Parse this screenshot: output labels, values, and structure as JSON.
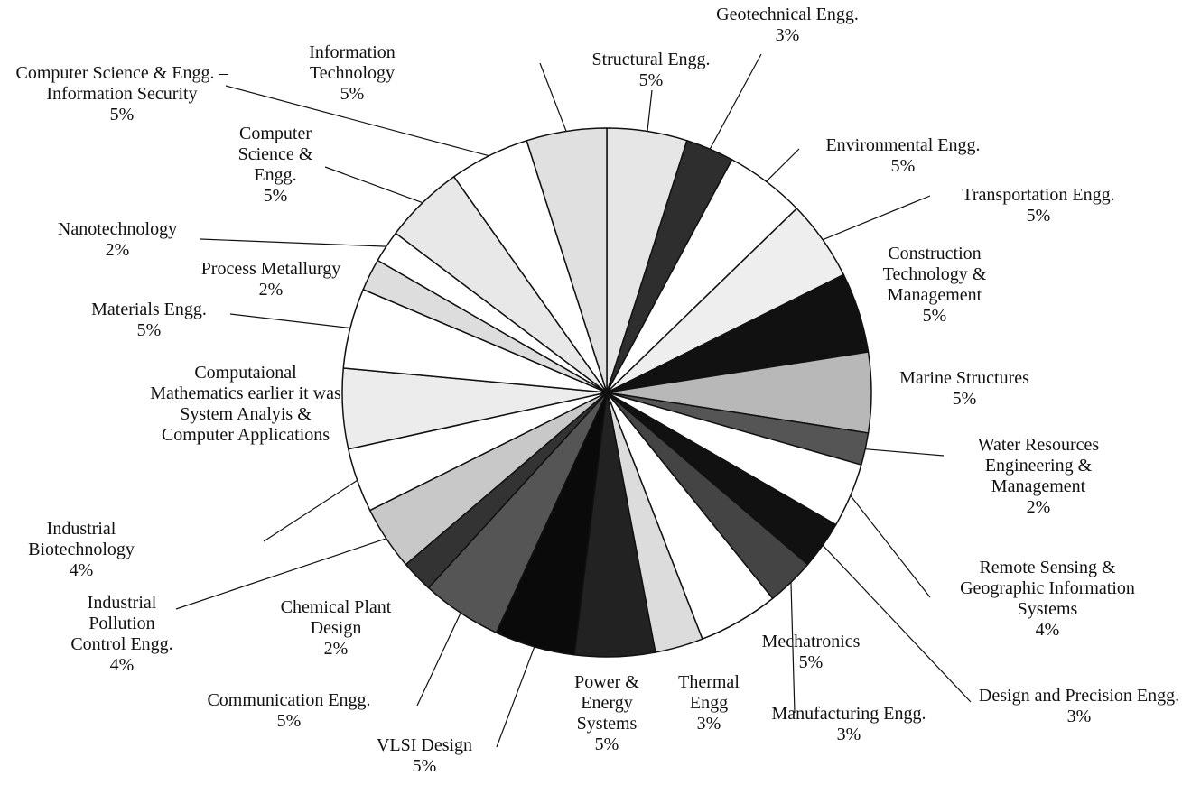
{
  "chart_data": {
    "type": "pie",
    "categories": [
      "Structural Engg.",
      "Geotechnical Engg.",
      "Environmental Engg.",
      "Transportation Engg.",
      "Construction Technology & Management",
      "Marine Structures",
      "Water Resources Engineering & Management",
      "Remote Sensing & Geographic Information Systems",
      "Design and Precision Engg.",
      "Manufacturing Engg.",
      "Mechatronics",
      "Thermal Engg",
      "Power & Energy Systems",
      "VLSI Design",
      "Communication Engg.",
      "Chemical Plant Design",
      "Industrial Pollution Control Engg.",
      "Industrial Biotechnology",
      "Computaional Mathematics earlier it was System Analyis & Computer Applications",
      "Materials Engg.",
      "Process Metallurgy",
      "Nanotechnology",
      "Computer Science & Engg.",
      "Computer Science & Engg. – Information Security",
      "Information Technology"
    ],
    "values": [
      5,
      3,
      5,
      5,
      5,
      5,
      2,
      4,
      3,
      3,
      5,
      3,
      5,
      5,
      5,
      2,
      4,
      4,
      5,
      5,
      2,
      2,
      5,
      5,
      5
    ],
    "value_labels": [
      "5%",
      "3%",
      "5%",
      "5%",
      "5%",
      "5%",
      "2%",
      "4%",
      "3%",
      "3%",
      "5%",
      "3%",
      "5%",
      "5%",
      "5%",
      "2%",
      "4%",
      "4%",
      null,
      "5%",
      "2%",
      "2%",
      "5%",
      "5%",
      "5%"
    ],
    "colors": [
      "#e6e6e6",
      "#2e2e2e",
      "#ffffff",
      "#eeeeee",
      "#111111",
      "#b8b8b8",
      "#555555",
      "#ffffff",
      "#111111",
      "#444444",
      "#ffffff",
      "#dcdcdc",
      "#222222",
      "#0a0a0a",
      "#555555",
      "#333333",
      "#c8c8c8",
      "#ffffff",
      "#ececec",
      "#ffffff",
      "#dddddd",
      "#ffffff",
      "#e8e8e8",
      "#ffffff",
      "#e0e0e0"
    ]
  }
}
